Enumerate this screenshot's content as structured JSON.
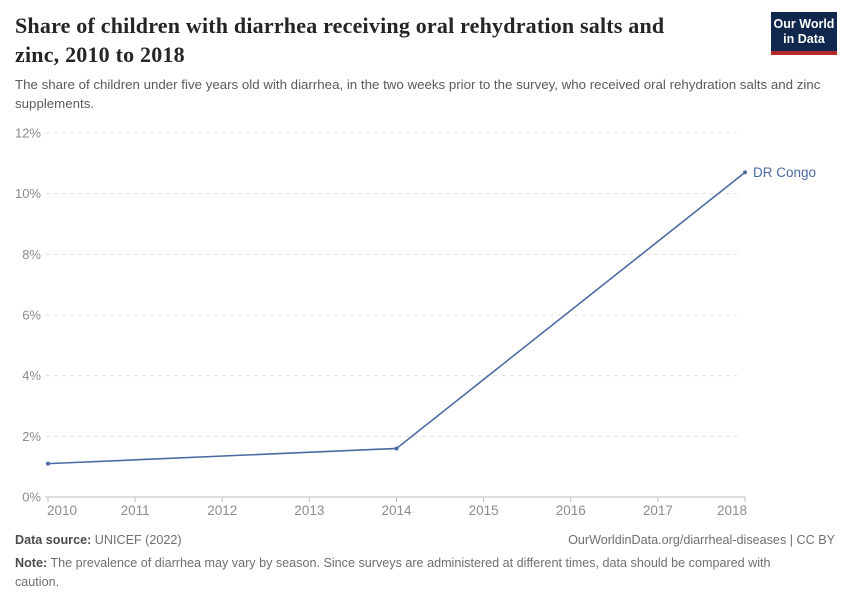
{
  "header": {
    "title": "Share of children with diarrhea receiving oral rehydration salts and zinc, 2010 to 2018",
    "subtitle": "The share of children under five years old with diarrhea, in the two weeks prior to the survey, who received oral rehydration salts and zinc supplements.",
    "logo": {
      "line1": "Our World",
      "line2": "in Data",
      "bg_color": "#10284d",
      "accent_color": "#b5292b"
    }
  },
  "chart_data": {
    "type": "line",
    "title": "Share of children with diarrhea receiving oral rehydration salts and zinc, 2010 to 2018",
    "xlabel": "",
    "ylabel": "",
    "xlim": [
      2010,
      2018
    ],
    "ylim": [
      0,
      12
    ],
    "grid": "horizontal-dashed",
    "legend": "series-end-label",
    "x_tick_values": [
      2010,
      2011,
      2012,
      2013,
      2014,
      2015,
      2016,
      2017,
      2018
    ],
    "x_tick_labels": [
      "2010",
      "2011",
      "2012",
      "2013",
      "2014",
      "2015",
      "2016",
      "2017",
      "2018"
    ],
    "y_tick_values": [
      0,
      2,
      4,
      6,
      8,
      10,
      12
    ],
    "y_tick_labels": [
      "0%",
      "2%",
      "4%",
      "6%",
      "8%",
      "10%",
      "12%"
    ],
    "series": [
      {
        "name": "DR Congo",
        "color": "#4b6aa3",
        "x": [
          2010,
          2014,
          2018
        ],
        "values": [
          1.1,
          1.6,
          10.7
        ],
        "unit": "%"
      }
    ]
  },
  "footer": {
    "datasource_label": "Data source:",
    "datasource_value": "UNICEF (2022)",
    "attribution": "OurWorldinData.org/diarrheal-diseases | CC BY",
    "note_label": "Note:",
    "note_text": "The prevalence of diarrhea may vary by season. Since surveys are administered at different times, data should be compared with caution."
  }
}
